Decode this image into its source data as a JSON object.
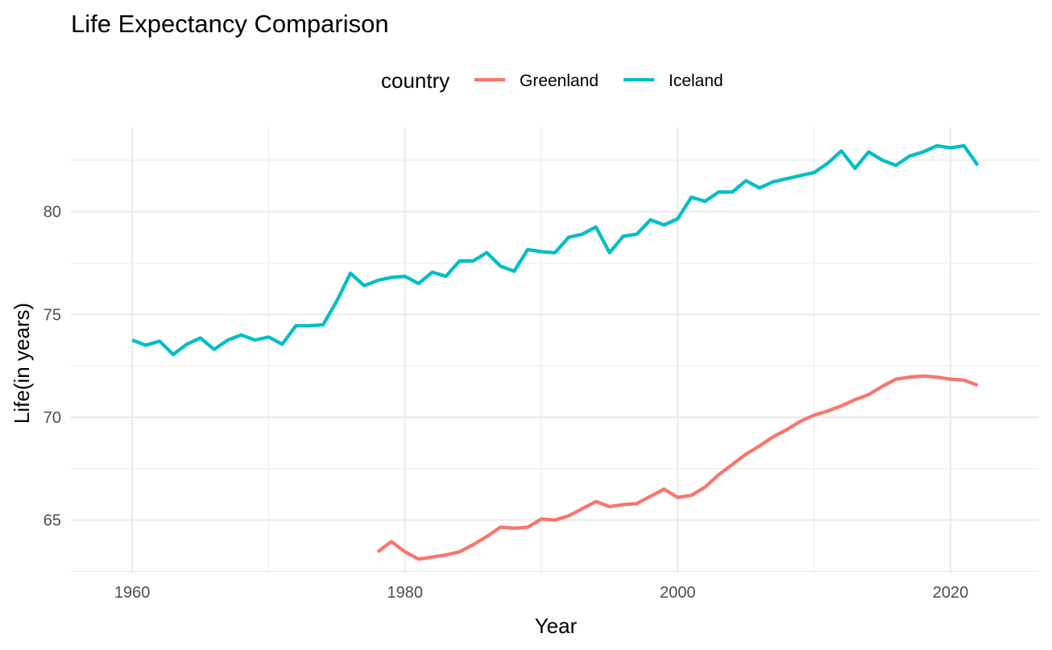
{
  "chart_data": {
    "type": "line",
    "title": "Life Expectancy Comparison",
    "xlabel": "Year",
    "ylabel": "Life(in years)",
    "legend": {
      "title": "country",
      "position": "top"
    },
    "grid": true,
    "xlim": [
      1955.5,
      2026.5
    ],
    "ylim": [
      62.4,
      84.1
    ],
    "x_ticks": [
      1960,
      1980,
      2000,
      2020
    ],
    "x_tick_labels": [
      "1960",
      "1980",
      "2000",
      "2020"
    ],
    "y_ticks": [
      65,
      70,
      75,
      80
    ],
    "y_tick_labels": [
      "65",
      "70",
      "75",
      "80"
    ],
    "series": [
      {
        "name": "Greenland",
        "color": "#F8766D",
        "x": [
          1978,
          1979,
          1980,
          1981,
          1982,
          1983,
          1984,
          1985,
          1986,
          1987,
          1988,
          1989,
          1990,
          1991,
          1992,
          1993,
          1994,
          1995,
          1996,
          1997,
          1998,
          1999,
          2000,
          2001,
          2002,
          2003,
          2004,
          2005,
          2006,
          2007,
          2008,
          2009,
          2010,
          2011,
          2012,
          2013,
          2014,
          2015,
          2016,
          2017,
          2018,
          2019,
          2020,
          2021,
          2022
        ],
        "values": [
          63.45,
          63.95,
          63.45,
          63.1,
          63.2,
          63.3,
          63.45,
          63.8,
          64.2,
          64.65,
          64.6,
          64.65,
          65.05,
          65.0,
          65.2,
          65.55,
          65.9,
          65.65,
          65.75,
          65.8,
          66.15,
          66.5,
          66.1,
          66.2,
          66.6,
          67.2,
          67.7,
          68.2,
          68.6,
          69.05,
          69.4,
          69.8,
          70.1,
          70.3,
          70.55,
          70.85,
          71.1,
          71.5,
          71.85,
          71.95,
          72.0,
          71.95,
          71.85,
          71.8,
          71.55
        ]
      },
      {
        "name": "Iceland",
        "color": "#00BFC4",
        "x": [
          1960,
          1961,
          1962,
          1963,
          1964,
          1965,
          1966,
          1967,
          1968,
          1969,
          1970,
          1971,
          1972,
          1973,
          1974,
          1975,
          1976,
          1977,
          1978,
          1979,
          1980,
          1981,
          1982,
          1983,
          1984,
          1985,
          1986,
          1987,
          1988,
          1989,
          1990,
          1991,
          1992,
          1993,
          1994,
          1995,
          1996,
          1997,
          1998,
          1999,
          2000,
          2001,
          2002,
          2003,
          2004,
          2005,
          2006,
          2007,
          2008,
          2009,
          2010,
          2011,
          2012,
          2013,
          2014,
          2015,
          2016,
          2017,
          2018,
          2019,
          2020,
          2021,
          2022
        ],
        "values": [
          73.75,
          73.5,
          73.7,
          73.05,
          73.55,
          73.85,
          73.3,
          73.75,
          74.0,
          73.75,
          73.9,
          73.55,
          74.45,
          74.45,
          74.5,
          75.65,
          77.0,
          76.4,
          76.65,
          76.8,
          76.85,
          76.5,
          77.05,
          76.85,
          77.6,
          77.6,
          78.0,
          77.35,
          77.1,
          78.15,
          78.05,
          78.0,
          78.75,
          78.9,
          79.25,
          78.0,
          78.8,
          78.9,
          79.6,
          79.35,
          79.65,
          80.7,
          80.5,
          80.95,
          80.95,
          81.5,
          81.15,
          81.45,
          81.6,
          81.75,
          81.9,
          82.35,
          82.95,
          82.1,
          82.9,
          82.5,
          82.25,
          82.7,
          82.9,
          83.2,
          83.1,
          83.2,
          82.25
        ]
      }
    ]
  }
}
